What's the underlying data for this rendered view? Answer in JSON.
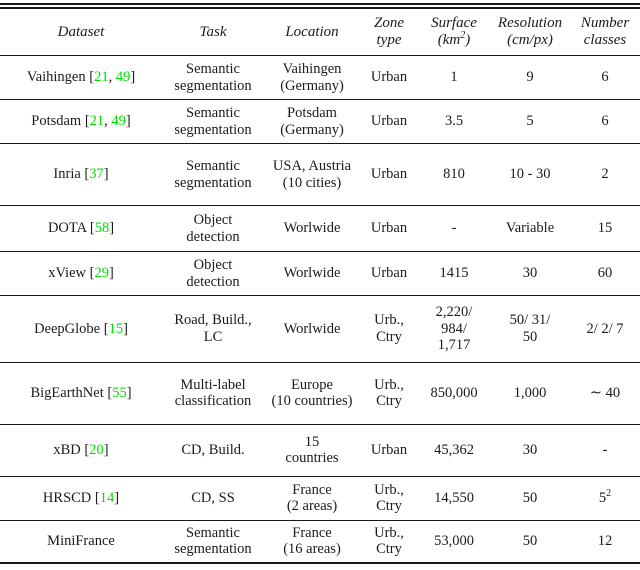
{
  "colors": {
    "citation_green": "#00e000",
    "text": "#1b1b1b",
    "rule": "#171717",
    "background": "#ffffff"
  },
  "table": {
    "columns": [
      {
        "key": "dataset",
        "lines": [
          [
            {
              "t": "Dataset"
            }
          ]
        ]
      },
      {
        "key": "task",
        "lines": [
          [
            {
              "t": "Task"
            }
          ]
        ]
      },
      {
        "key": "location",
        "lines": [
          [
            {
              "t": "Location"
            }
          ]
        ]
      },
      {
        "key": "zone",
        "lines": [
          [
            {
              "t": "Zone"
            }
          ],
          [
            {
              "t": "type"
            }
          ]
        ]
      },
      {
        "key": "surface",
        "lines": [
          [
            {
              "t": "Surface"
            }
          ],
          [
            {
              "t": "(km"
            },
            {
              "t": "2",
              "sup": true
            },
            {
              "t": ")"
            }
          ]
        ]
      },
      {
        "key": "resolution",
        "lines": [
          [
            {
              "t": "Resolution"
            }
          ],
          [
            {
              "t": "(cm/px)"
            }
          ]
        ]
      },
      {
        "key": "classes",
        "lines": [
          [
            {
              "t": "Number"
            }
          ],
          [
            {
              "t": "classes"
            }
          ]
        ]
      }
    ],
    "rows": [
      {
        "cells": [
          {
            "lines": [
              [
                {
                  "t": "Vaihingen ["
                },
                {
                  "t": "21",
                  "cite": true
                },
                {
                  "t": ", "
                },
                {
                  "t": "49",
                  "cite": true
                },
                {
                  "t": "]"
                }
              ]
            ]
          },
          {
            "lines": [
              [
                {
                  "t": "Semantic"
                }
              ],
              [
                {
                  "t": "segmentation"
                }
              ]
            ]
          },
          {
            "lines": [
              [
                {
                  "t": "Vaihingen"
                }
              ],
              [
                {
                  "t": "(Germany)"
                }
              ]
            ]
          },
          {
            "lines": [
              [
                {
                  "t": "Urban"
                }
              ]
            ]
          },
          {
            "lines": [
              [
                {
                  "t": "1"
                }
              ]
            ]
          },
          {
            "lines": [
              [
                {
                  "t": "9"
                }
              ]
            ]
          },
          {
            "lines": [
              [
                {
                  "t": "6"
                }
              ]
            ]
          }
        ]
      },
      {
        "cells": [
          {
            "lines": [
              [
                {
                  "t": "Potsdam ["
                },
                {
                  "t": "21",
                  "cite": true
                },
                {
                  "t": ", "
                },
                {
                  "t": "49",
                  "cite": true
                },
                {
                  "t": "]"
                }
              ]
            ]
          },
          {
            "lines": [
              [
                {
                  "t": "Semantic"
                }
              ],
              [
                {
                  "t": "segmentation"
                }
              ]
            ]
          },
          {
            "lines": [
              [
                {
                  "t": "Potsdam"
                }
              ],
              [
                {
                  "t": "(Germany)"
                }
              ]
            ]
          },
          {
            "lines": [
              [
                {
                  "t": "Urban"
                }
              ]
            ]
          },
          {
            "lines": [
              [
                {
                  "t": "3.5"
                }
              ]
            ]
          },
          {
            "lines": [
              [
                {
                  "t": "5"
                }
              ]
            ]
          },
          {
            "lines": [
              [
                {
                  "t": "6"
                }
              ]
            ]
          }
        ]
      },
      {
        "cells": [
          {
            "lines": [
              [
                {
                  "t": "Inria ["
                },
                {
                  "t": "37",
                  "cite": true
                },
                {
                  "t": "]"
                }
              ]
            ]
          },
          {
            "lines": [
              [
                {
                  "t": "Semantic"
                }
              ],
              [
                {
                  "t": "segmentation"
                }
              ]
            ]
          },
          {
            "lines": [
              [
                {
                  "t": "USA, Austria"
                }
              ],
              [
                {
                  "t": "(10 cities)"
                }
              ]
            ]
          },
          {
            "lines": [
              [
                {
                  "t": "Urban"
                }
              ]
            ]
          },
          {
            "lines": [
              [
                {
                  "t": "810"
                }
              ]
            ]
          },
          {
            "lines": [
              [
                {
                  "t": "10 - 30"
                }
              ]
            ]
          },
          {
            "lines": [
              [
                {
                  "t": "2"
                }
              ]
            ]
          }
        ]
      },
      {
        "cells": [
          {
            "lines": [
              [
                {
                  "t": "DOTA ["
                },
                {
                  "t": "58",
                  "cite": true
                },
                {
                  "t": "]"
                }
              ]
            ]
          },
          {
            "lines": [
              [
                {
                  "t": "Object"
                }
              ],
              [
                {
                  "t": "detection"
                }
              ]
            ]
          },
          {
            "lines": [
              [
                {
                  "t": "Worlwide"
                }
              ]
            ]
          },
          {
            "lines": [
              [
                {
                  "t": "Urban"
                }
              ]
            ]
          },
          {
            "lines": [
              [
                {
                  "t": "-"
                }
              ]
            ]
          },
          {
            "lines": [
              [
                {
                  "t": "Variable"
                }
              ]
            ]
          },
          {
            "lines": [
              [
                {
                  "t": "15"
                }
              ]
            ]
          }
        ]
      },
      {
        "cells": [
          {
            "lines": [
              [
                {
                  "t": "xView ["
                },
                {
                  "t": "29",
                  "cite": true
                },
                {
                  "t": "]"
                }
              ]
            ]
          },
          {
            "lines": [
              [
                {
                  "t": "Object"
                }
              ],
              [
                {
                  "t": "detection"
                }
              ]
            ]
          },
          {
            "lines": [
              [
                {
                  "t": "Worlwide"
                }
              ]
            ]
          },
          {
            "lines": [
              [
                {
                  "t": "Urban"
                }
              ]
            ]
          },
          {
            "lines": [
              [
                {
                  "t": "1415"
                }
              ]
            ]
          },
          {
            "lines": [
              [
                {
                  "t": "30"
                }
              ]
            ]
          },
          {
            "lines": [
              [
                {
                  "t": "60"
                }
              ]
            ]
          }
        ]
      },
      {
        "cells": [
          {
            "lines": [
              [
                {
                  "t": "DeepGlobe ["
                },
                {
                  "t": "15",
                  "cite": true
                },
                {
                  "t": "]"
                }
              ]
            ]
          },
          {
            "lines": [
              [
                {
                  "t": "Road, Build.,"
                }
              ],
              [
                {
                  "t": "LC"
                }
              ]
            ]
          },
          {
            "lines": [
              [
                {
                  "t": "Worlwide"
                }
              ]
            ]
          },
          {
            "lines": [
              [
                {
                  "t": "Urb.,"
                }
              ],
              [
                {
                  "t": "Ctry"
                }
              ]
            ]
          },
          {
            "lines": [
              [
                {
                  "t": "2,220/"
                }
              ],
              [
                {
                  "t": "984/"
                }
              ],
              [
                {
                  "t": "1,717"
                }
              ]
            ]
          },
          {
            "lines": [
              [
                {
                  "t": "50/ 31/"
                }
              ],
              [
                {
                  "t": "50"
                }
              ]
            ]
          },
          {
            "lines": [
              [
                {
                  "t": "2/ 2/ 7"
                }
              ]
            ]
          }
        ]
      },
      {
        "cells": [
          {
            "lines": [
              [
                {
                  "t": "BigEarthNet ["
                },
                {
                  "t": "55",
                  "cite": true
                },
                {
                  "t": "]"
                }
              ]
            ]
          },
          {
            "lines": [
              [
                {
                  "t": "Multi-label"
                }
              ],
              [
                {
                  "t": "classification"
                }
              ]
            ]
          },
          {
            "lines": [
              [
                {
                  "t": "Europe"
                }
              ],
              [
                {
                  "t": "(10 countries)"
                }
              ]
            ]
          },
          {
            "lines": [
              [
                {
                  "t": "Urb.,"
                }
              ],
              [
                {
                  "t": "Ctry"
                }
              ]
            ]
          },
          {
            "lines": [
              [
                {
                  "t": "850,000"
                }
              ]
            ]
          },
          {
            "lines": [
              [
                {
                  "t": "1,000"
                }
              ]
            ]
          },
          {
            "lines": [
              [
                {
                  "t": "∼ 40"
                }
              ]
            ]
          }
        ]
      },
      {
        "cells": [
          {
            "lines": [
              [
                {
                  "t": "xBD ["
                },
                {
                  "t": "20",
                  "cite": true
                },
                {
                  "t": "]"
                }
              ]
            ]
          },
          {
            "lines": [
              [
                {
                  "t": "CD, Build."
                }
              ]
            ]
          },
          {
            "lines": [
              [
                {
                  "t": "15"
                }
              ],
              [
                {
                  "t": "countries"
                }
              ]
            ]
          },
          {
            "lines": [
              [
                {
                  "t": "Urban"
                }
              ]
            ]
          },
          {
            "lines": [
              [
                {
                  "t": "45,362"
                }
              ]
            ]
          },
          {
            "lines": [
              [
                {
                  "t": "30"
                }
              ]
            ]
          },
          {
            "lines": [
              [
                {
                  "t": "-"
                }
              ]
            ]
          }
        ]
      },
      {
        "cells": [
          {
            "lines": [
              [
                {
                  "t": "HRSCD ["
                },
                {
                  "t": "14",
                  "cite": true
                },
                {
                  "t": "]"
                }
              ]
            ]
          },
          {
            "lines": [
              [
                {
                  "t": "CD, SS"
                }
              ]
            ]
          },
          {
            "lines": [
              [
                {
                  "t": "France"
                }
              ],
              [
                {
                  "t": "(2 areas)"
                }
              ]
            ]
          },
          {
            "lines": [
              [
                {
                  "t": "Urb.,"
                }
              ],
              [
                {
                  "t": "Ctry"
                }
              ]
            ]
          },
          {
            "lines": [
              [
                {
                  "t": "14,550"
                }
              ]
            ]
          },
          {
            "lines": [
              [
                {
                  "t": "50"
                }
              ]
            ]
          },
          {
            "lines": [
              [
                {
                  "t": "5"
                },
                {
                  "t": "2",
                  "sup": true
                }
              ]
            ]
          }
        ]
      },
      {
        "cells": [
          {
            "lines": [
              [
                {
                  "t": "MiniFrance"
                }
              ]
            ]
          },
          {
            "lines": [
              [
                {
                  "t": "Semantic"
                }
              ],
              [
                {
                  "t": "segmentation"
                }
              ]
            ]
          },
          {
            "lines": [
              [
                {
                  "t": "France"
                }
              ],
              [
                {
                  "t": "(16 areas)"
                }
              ]
            ]
          },
          {
            "lines": [
              [
                {
                  "t": "Urb.,"
                }
              ],
              [
                {
                  "t": "Ctry"
                }
              ]
            ]
          },
          {
            "lines": [
              [
                {
                  "t": "53,000"
                }
              ]
            ]
          },
          {
            "lines": [
              [
                {
                  "t": "50"
                }
              ]
            ]
          },
          {
            "lines": [
              [
                {
                  "t": "12"
                }
              ]
            ]
          }
        ]
      }
    ]
  }
}
